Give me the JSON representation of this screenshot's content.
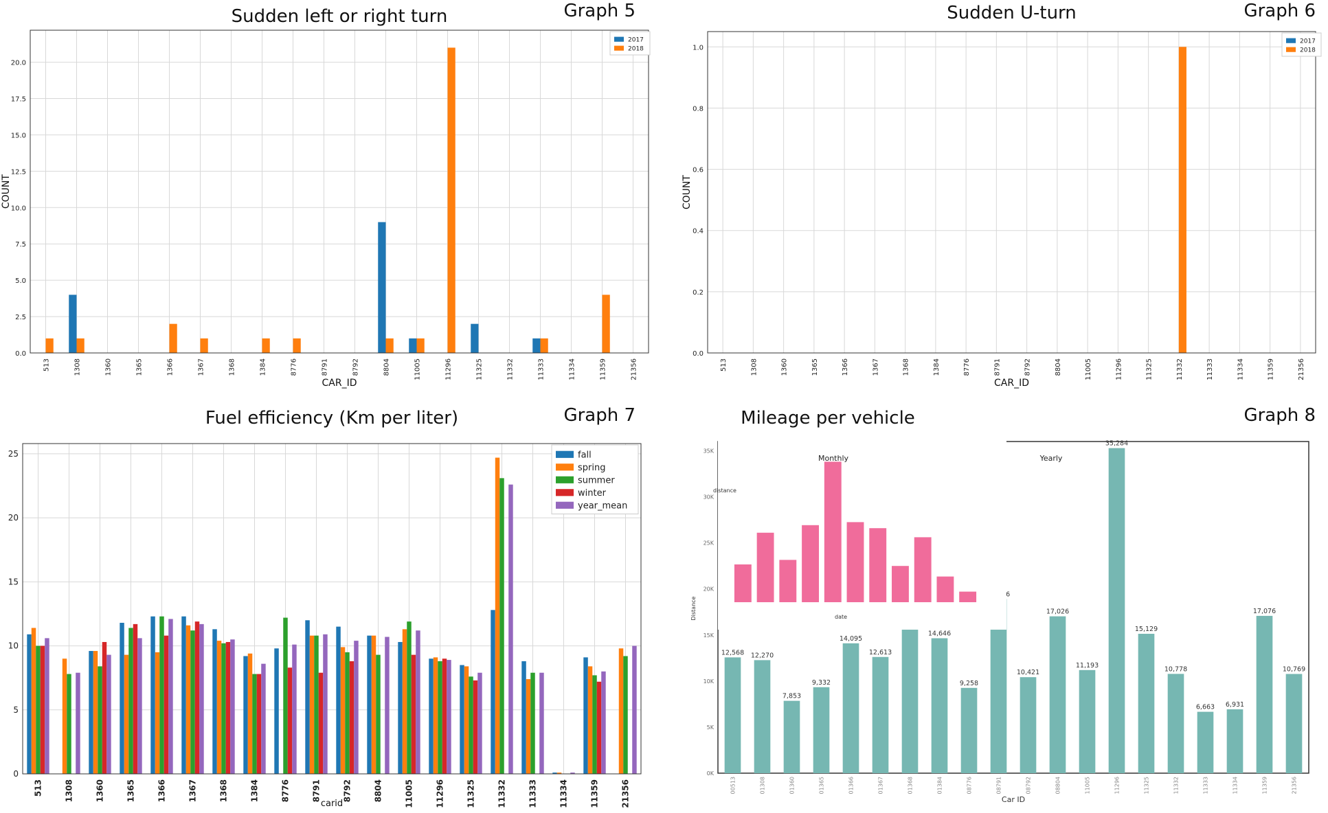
{
  "graphs": [
    {
      "tag": "Graph 5",
      "chart_data": {
        "type": "bar",
        "title": "Sudden left or right turn",
        "xlabel": "CAR_ID",
        "ylabel": "COUNT",
        "ylim": [
          0,
          22.2
        ],
        "yticks": [
          "0.0",
          "2.5",
          "5.0",
          "7.5",
          "10.0",
          "12.5",
          "15.0",
          "17.5",
          "20.0"
        ],
        "ytick_values": [
          0,
          2.5,
          5,
          7.5,
          10,
          12.5,
          15,
          17.5,
          20
        ],
        "grid": true,
        "legend": "top-right",
        "categories": [
          "513",
          "1308",
          "1360",
          "1365",
          "1366",
          "1367",
          "1368",
          "1384",
          "8776",
          "8791",
          "8792",
          "8804",
          "11005",
          "11296",
          "11325",
          "11332",
          "11333",
          "11334",
          "11359",
          "21356"
        ],
        "series": [
          {
            "name": "2017",
            "color": "#1f77b4",
            "values": [
              0,
              4,
              0,
              0,
              0,
              0,
              0,
              0,
              0,
              0,
              0,
              9,
              1,
              0,
              2,
              0,
              1,
              0,
              0,
              0
            ]
          },
          {
            "name": "2018",
            "color": "#ff7f0e",
            "values": [
              1,
              1,
              0,
              0,
              2,
              1,
              0,
              1,
              1,
              0,
              0,
              1,
              1,
              21,
              0,
              0,
              1,
              0,
              4,
              0
            ]
          }
        ]
      }
    },
    {
      "tag": "Graph 6",
      "chart_data": {
        "type": "bar",
        "title": "Sudden U-turn",
        "xlabel": "CAR_ID",
        "ylabel": "COUNT",
        "ylim": [
          0,
          1.05
        ],
        "yticks": [
          "0.0",
          "0.2",
          "0.4",
          "0.6",
          "0.8",
          "1.0"
        ],
        "ytick_values": [
          0,
          0.2,
          0.4,
          0.6,
          0.8,
          1.0
        ],
        "grid": true,
        "legend": "top-right",
        "categories": [
          "513",
          "1308",
          "1360",
          "1365",
          "1366",
          "1367",
          "1368",
          "1384",
          "8776",
          "8791",
          "8792",
          "8804",
          "11005",
          "11296",
          "11325",
          "11332",
          "11333",
          "11334",
          "11359",
          "21356"
        ],
        "series": [
          {
            "name": "2017",
            "color": "#1f77b4",
            "values": [
              0,
              0,
              0,
              0,
              0,
              0,
              0,
              0,
              0,
              0,
              0,
              0,
              0,
              0,
              0,
              0,
              0,
              0,
              0,
              0
            ]
          },
          {
            "name": "2018",
            "color": "#ff7f0e",
            "values": [
              0,
              0,
              0,
              0,
              0,
              0,
              0,
              0,
              0,
              0,
              0,
              0,
              0,
              0,
              0,
              1,
              0,
              0,
              0,
              0
            ]
          }
        ]
      }
    },
    {
      "tag": "Graph 7",
      "chart_data": {
        "type": "bar",
        "title": "Fuel efficiency (Km per liter)",
        "xlabel": "carid",
        "ylabel": "",
        "ylim": [
          0,
          25.8
        ],
        "yticks": [
          "0",
          "5",
          "10",
          "15",
          "20",
          "25"
        ],
        "ytick_values": [
          0,
          5,
          10,
          15,
          20,
          25
        ],
        "grid": true,
        "legend": "top-right",
        "categories": [
          "513",
          "1308",
          "1360",
          "1365",
          "1366",
          "1367",
          "1368",
          "1384",
          "8776",
          "8791",
          "8792",
          "8804",
          "11005",
          "11296",
          "11325",
          "11332",
          "11333",
          "11334",
          "11359",
          "21356"
        ],
        "series": [
          {
            "name": "fall",
            "color": "#1f77b4",
            "values": [
              10.9,
              0,
              9.6,
              11.8,
              12.3,
              12.3,
              11.3,
              9.2,
              9.8,
              12.0,
              11.5,
              10.8,
              10.3,
              9.0,
              8.5,
              12.8,
              8.8,
              0.1,
              9.1,
              0
            ]
          },
          {
            "name": "spring",
            "color": "#ff7f0e",
            "values": [
              11.4,
              9.0,
              9.6,
              9.3,
              9.5,
              11.6,
              10.4,
              9.4,
              0,
              10.8,
              9.9,
              10.8,
              11.3,
              9.1,
              8.4,
              24.7,
              7.4,
              0.1,
              8.4,
              9.8
            ]
          },
          {
            "name": "summer",
            "color": "#2ca02c",
            "values": [
              10.0,
              7.8,
              8.4,
              11.4,
              12.3,
              11.2,
              10.2,
              7.8,
              12.2,
              10.8,
              9.5,
              9.3,
              11.9,
              8.8,
              7.6,
              23.1,
              7.9,
              0,
              7.7,
              9.2
            ]
          },
          {
            "name": "winter",
            "color": "#d62728",
            "values": [
              10.0,
              0,
              10.3,
              11.7,
              10.8,
              11.9,
              10.3,
              7.8,
              8.3,
              7.9,
              8.8,
              0,
              9.3,
              9.0,
              7.3,
              0,
              0,
              0,
              7.2,
              0
            ]
          },
          {
            "name": "year_mean",
            "color": "#9467bd",
            "values": [
              10.6,
              7.9,
              9.3,
              10.6,
              12.1,
              11.7,
              10.5,
              8.6,
              10.1,
              10.9,
              10.4,
              10.7,
              11.2,
              8.9,
              7.9,
              22.6,
              7.9,
              0.1,
              8.0,
              10.0
            ]
          }
        ]
      }
    },
    {
      "tag": "Graph 8",
      "chart_data": {
        "type": "bar",
        "title": "Mileage per vehicle",
        "xlabel": "Car ID",
        "ylabel": "Distance",
        "ylim": [
          0,
          36000
        ],
        "yticks": [
          "0K",
          "5K",
          "10K",
          "15K",
          "20K",
          "25K",
          "30K",
          "35K"
        ],
        "ytick_values": [
          0,
          5000,
          10000,
          15000,
          20000,
          25000,
          30000,
          35000
        ],
        "label_monthly": "Monthly",
        "label_yearly": "Yearly",
        "color": "#76b7b2",
        "categories": [
          "00513",
          "01308",
          "01360",
          "01365",
          "01366",
          "01367",
          "01368",
          "01384",
          "08776",
          "08791",
          "08792",
          "08804",
          "11005",
          "11296",
          "11325",
          "11332",
          "11333",
          "11334",
          "11359",
          "21356"
        ],
        "values": [
          12568,
          12270,
          7853,
          9332,
          14095,
          12613,
          18197,
          14646,
          9258,
          18906,
          10421,
          17026,
          11193,
          35284,
          15129,
          10778,
          6663,
          6931,
          17076,
          10769
        ],
        "value_labels": [
          "12,568",
          "12,270",
          "7,853",
          "9,332",
          "14,095",
          "12,613",
          "18,197",
          "14,646",
          "9,258",
          "18,906",
          "10,421",
          "17,026",
          "11,193",
          "35,284",
          "15,129",
          "10,778",
          "6,663",
          "6,931",
          "17,076",
          "10,769"
        ],
        "inset": {
          "xlabel": "date",
          "ylabel": "distance",
          "color": "#f06c9b",
          "values": [
            0.25,
            0.46,
            0.28,
            0.51,
            0.93,
            0.53,
            0.49,
            0.24,
            0.43,
            0.17,
            0.07
          ]
        }
      }
    }
  ]
}
